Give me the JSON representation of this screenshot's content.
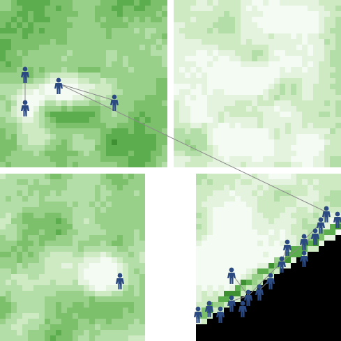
{
  "palette": {
    "background": "#ffffff",
    "agent": "#2c4a82",
    "link": "#8a8a8a",
    "void": "#000000",
    "green_scale": [
      "#f4fbf2",
      "#e3f3dd",
      "#cdeac3",
      "#b4dea7",
      "#98d089",
      "#7cc06c",
      "#5cad4d",
      "#3f8f33"
    ]
  },
  "panels": [
    {
      "name": "panel-top-left",
      "tone": "dark",
      "has_void": false
    },
    {
      "name": "panel-top-right",
      "tone": "light",
      "has_void": false
    },
    {
      "name": "panel-bottom-left",
      "tone": "medium",
      "has_void": false
    },
    {
      "name": "panel-bottom-right",
      "tone": "light",
      "has_void": true
    }
  ],
  "agent_icon": "person-icon"
}
